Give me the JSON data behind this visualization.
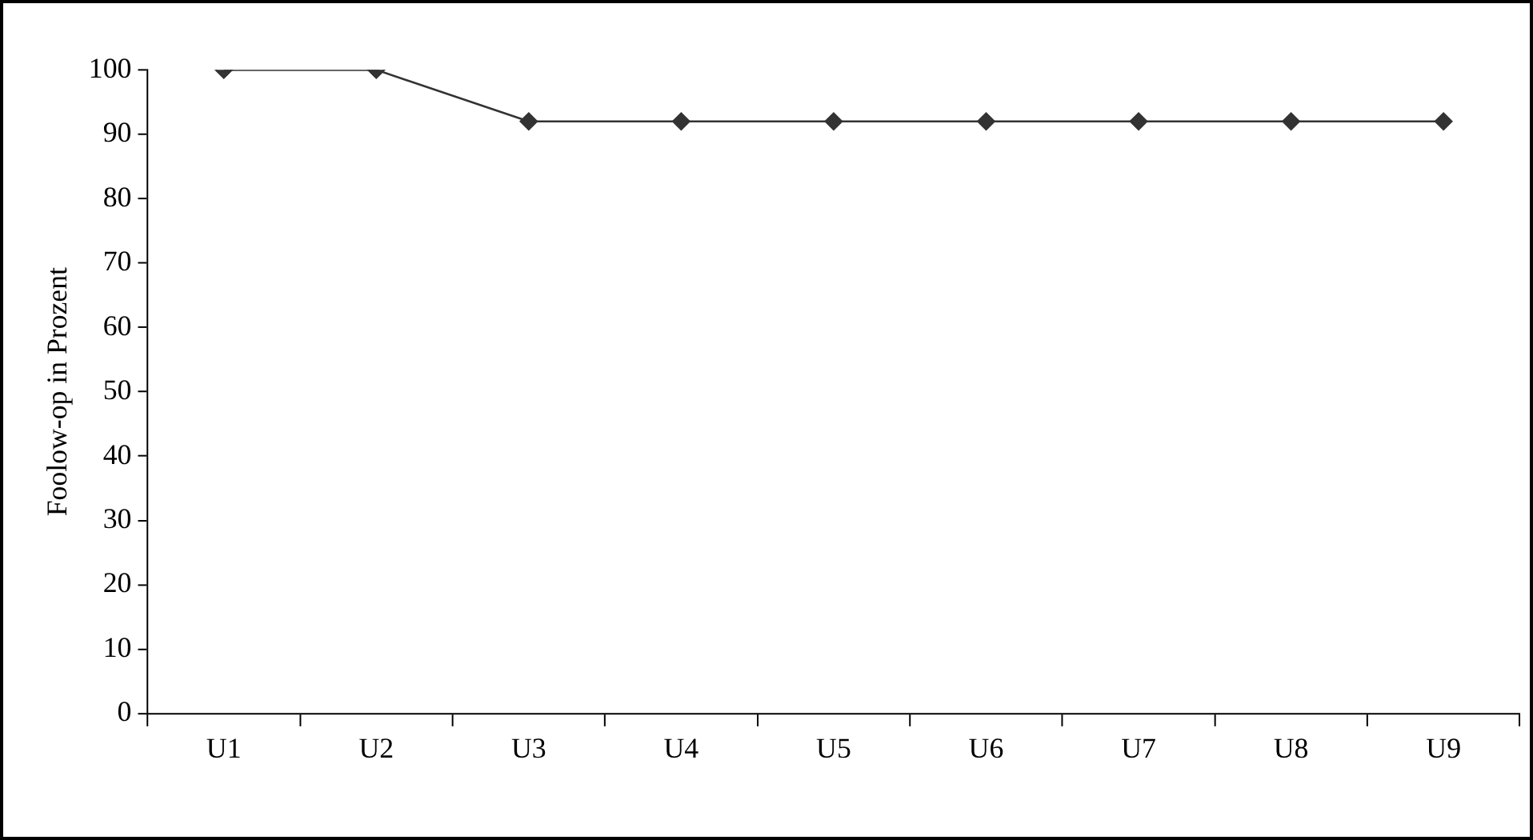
{
  "chart_data": {
    "type": "line",
    "ylabel": "Foolow-op in Prozent",
    "categories": [
      "U1",
      "U2",
      "U3",
      "U4",
      "U5",
      "U6",
      "U7",
      "U8",
      "U9"
    ],
    "series": [
      {
        "color": "#333333",
        "values": [
          100,
          100,
          92,
          92,
          92,
          92,
          92,
          92,
          92
        ]
      }
    ],
    "ylim": [
      0,
      100
    ],
    "yticks": [
      0,
      10,
      20,
      30,
      40,
      50,
      60,
      70,
      80,
      90,
      100
    ],
    "grid": false,
    "legend": false,
    "marker": "diamond",
    "line_style": "solid"
  }
}
